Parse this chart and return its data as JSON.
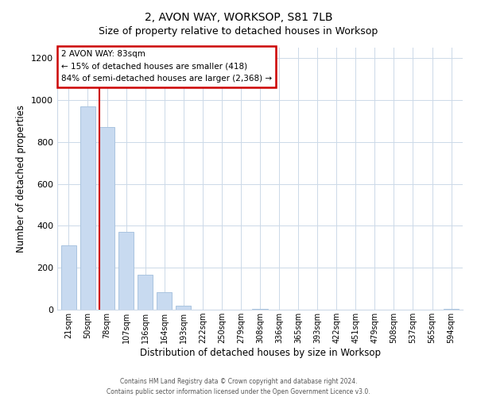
{
  "title": "2, AVON WAY, WORKSOP, S81 7LB",
  "subtitle": "Size of property relative to detached houses in Worksop",
  "xlabel": "Distribution of detached houses by size in Worksop",
  "ylabel": "Number of detached properties",
  "bar_labels": [
    "21sqm",
    "50sqm",
    "78sqm",
    "107sqm",
    "136sqm",
    "164sqm",
    "193sqm",
    "222sqm",
    "250sqm",
    "279sqm",
    "308sqm",
    "336sqm",
    "365sqm",
    "393sqm",
    "422sqm",
    "451sqm",
    "479sqm",
    "508sqm",
    "537sqm",
    "565sqm",
    "594sqm"
  ],
  "bar_values": [
    308,
    970,
    870,
    370,
    168,
    82,
    20,
    0,
    0,
    0,
    5,
    0,
    0,
    0,
    0,
    0,
    0,
    0,
    0,
    0,
    5
  ],
  "bar_color": "#c8daf0",
  "bar_edge_color": "#aac4e0",
  "red_line_color": "#cc0000",
  "annotation_box_color": "#ffffff",
  "annotation_box_edge": "#cc0000",
  "marker_label": "2 AVON WAY: 83sqm",
  "annotation_line1": "← 15% of detached houses are smaller (418)",
  "annotation_line2": "84% of semi-detached houses are larger (2,368) →",
  "ylim": [
    0,
    1250
  ],
  "yticks": [
    0,
    200,
    400,
    600,
    800,
    1000,
    1200
  ],
  "footer1": "Contains HM Land Registry data © Crown copyright and database right 2024.",
  "footer2": "Contains public sector information licensed under the Open Government Licence v3.0.",
  "background_color": "#ffffff",
  "grid_color": "#ccd9e8"
}
